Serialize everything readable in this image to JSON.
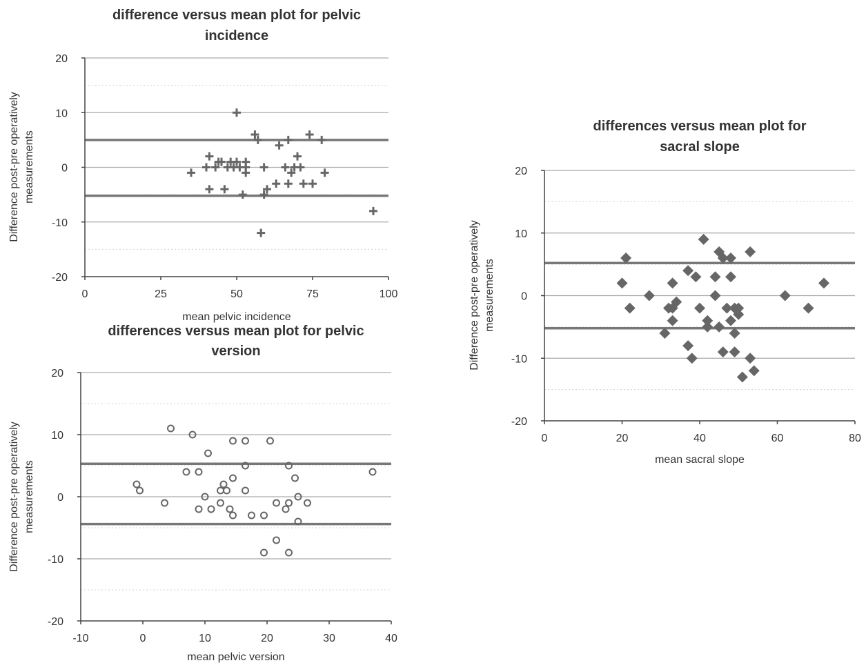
{
  "chart_data": [
    {
      "type": "scatter",
      "title": "difference versus mean plot for pelvic incidence",
      "title_lines": [
        "difference versus mean plot for pelvic",
        "incidence"
      ],
      "xlabel": "mean pelvic incidence",
      "ylabel": "Difference post-pre operatively measurements",
      "ylabel_lines": [
        "Difference post-pre operatively",
        "measurements"
      ],
      "xlim": [
        0,
        100
      ],
      "ylim": [
        -20,
        20
      ],
      "xticks": [
        "0",
        "25",
        "50",
        "75",
        "100"
      ],
      "yticks": [
        "20",
        "10",
        "0",
        "-10",
        "-20"
      ],
      "marker": "plus",
      "limits": [
        5,
        -5.2
      ],
      "grid": true,
      "points": [
        [
          35,
          -1
        ],
        [
          40,
          0
        ],
        [
          41,
          2
        ],
        [
          41,
          -4
        ],
        [
          43,
          0
        ],
        [
          44,
          1
        ],
        [
          45,
          1
        ],
        [
          46,
          -4
        ],
        [
          47,
          0
        ],
        [
          48,
          1
        ],
        [
          49,
          0
        ],
        [
          50,
          10
        ],
        [
          50,
          1
        ],
        [
          51,
          0
        ],
        [
          52,
          -5
        ],
        [
          53,
          -1
        ],
        [
          53,
          1
        ],
        [
          53,
          0
        ],
        [
          56,
          6
        ],
        [
          57,
          5
        ],
        [
          58,
          -12
        ],
        [
          59,
          0
        ],
        [
          59,
          -5
        ],
        [
          60,
          -4
        ],
        [
          63,
          -3
        ],
        [
          64,
          4
        ],
        [
          66,
          0
        ],
        [
          67,
          5
        ],
        [
          67,
          -3
        ],
        [
          68,
          -1
        ],
        [
          69,
          0
        ],
        [
          70,
          2
        ],
        [
          71,
          0
        ],
        [
          72,
          -3
        ],
        [
          74,
          6
        ],
        [
          75,
          -3
        ],
        [
          78,
          5
        ],
        [
          79,
          -1
        ],
        [
          95,
          -8
        ]
      ]
    },
    {
      "type": "scatter",
      "title": "differences versus mean plot for pelvic version",
      "title_lines": [
        "differences versus mean plot for pelvic",
        "version"
      ],
      "xlabel": "mean pelvic version",
      "ylabel": "Difference post-pre operatively measurements",
      "ylabel_lines": [
        "Difference post-pre operatively",
        "measurements"
      ],
      "xlim": [
        -10,
        40
      ],
      "ylim": [
        -20,
        20
      ],
      "xticks": [
        "-10",
        "0",
        "10",
        "20",
        "30",
        "40"
      ],
      "yticks": [
        "20",
        "10",
        "0",
        "-10",
        "-20"
      ],
      "marker": "circle",
      "limits": [
        5.3,
        -4.4
      ],
      "grid": true,
      "points": [
        [
          -1,
          2
        ],
        [
          -0.5,
          1
        ],
        [
          3.5,
          -1
        ],
        [
          4.5,
          11
        ],
        [
          7,
          4
        ],
        [
          8,
          10
        ],
        [
          9,
          -2
        ],
        [
          9,
          4
        ],
        [
          10,
          0
        ],
        [
          10.5,
          7
        ],
        [
          11,
          -2
        ],
        [
          12.5,
          -1
        ],
        [
          12.5,
          1
        ],
        [
          13,
          2
        ],
        [
          13.5,
          1
        ],
        [
          14,
          -2
        ],
        [
          14.5,
          -3
        ],
        [
          14.5,
          3
        ],
        [
          14.5,
          9
        ],
        [
          16.5,
          1
        ],
        [
          16.5,
          5
        ],
        [
          16.5,
          9
        ],
        [
          17.5,
          -3
        ],
        [
          19.5,
          -3
        ],
        [
          19.5,
          -9
        ],
        [
          20.5,
          9
        ],
        [
          21.5,
          -7
        ],
        [
          21.5,
          -1
        ],
        [
          23,
          -2
        ],
        [
          23.5,
          -1
        ],
        [
          23.5,
          5
        ],
        [
          23.5,
          -9
        ],
        [
          24.5,
          3
        ],
        [
          25,
          0
        ],
        [
          25,
          -4
        ],
        [
          26.5,
          -1
        ],
        [
          37,
          4
        ]
      ]
    },
    {
      "type": "scatter",
      "title": "differences versus mean plot for sacral slope",
      "title_lines": [
        "differences versus mean plot for",
        "sacral slope"
      ],
      "xlabel": "mean sacral slope",
      "ylabel": "Difference post-pre operatively measurements",
      "ylabel_lines": [
        "Difference post-pre operatively",
        "measurements"
      ],
      "xlim": [
        0,
        80
      ],
      "ylim": [
        -20,
        20
      ],
      "xticks": [
        "0",
        "20",
        "40",
        "60",
        "80"
      ],
      "yticks": [
        "20",
        "10",
        "0",
        "-10",
        "-20"
      ],
      "marker": "diamond",
      "limits": [
        5.2,
        -5.2
      ],
      "grid": true,
      "points": [
        [
          20,
          2
        ],
        [
          21,
          6
        ],
        [
          22,
          -2
        ],
        [
          27,
          0
        ],
        [
          31,
          -6
        ],
        [
          32,
          -2
        ],
        [
          33,
          2
        ],
        [
          33,
          -4
        ],
        [
          33,
          -2
        ],
        [
          34,
          -1
        ],
        [
          37,
          4
        ],
        [
          37,
          -8
        ],
        [
          38,
          -10
        ],
        [
          39,
          3
        ],
        [
          40,
          -2
        ],
        [
          41,
          9
        ],
        [
          42,
          -4
        ],
        [
          42,
          -5
        ],
        [
          44,
          3
        ],
        [
          44,
          0
        ],
        [
          45,
          7
        ],
        [
          45,
          -5
        ],
        [
          46,
          6
        ],
        [
          46,
          -9
        ],
        [
          47,
          -2
        ],
        [
          48,
          3
        ],
        [
          48,
          6
        ],
        [
          48,
          -4
        ],
        [
          49,
          -2
        ],
        [
          49,
          -9
        ],
        [
          49,
          -6
        ],
        [
          50,
          -2
        ],
        [
          50,
          -3
        ],
        [
          51,
          -13
        ],
        [
          53,
          7
        ],
        [
          53,
          -10
        ],
        [
          54,
          -12
        ],
        [
          62,
          0
        ],
        [
          68,
          -2
        ],
        [
          72,
          2
        ]
      ]
    }
  ]
}
